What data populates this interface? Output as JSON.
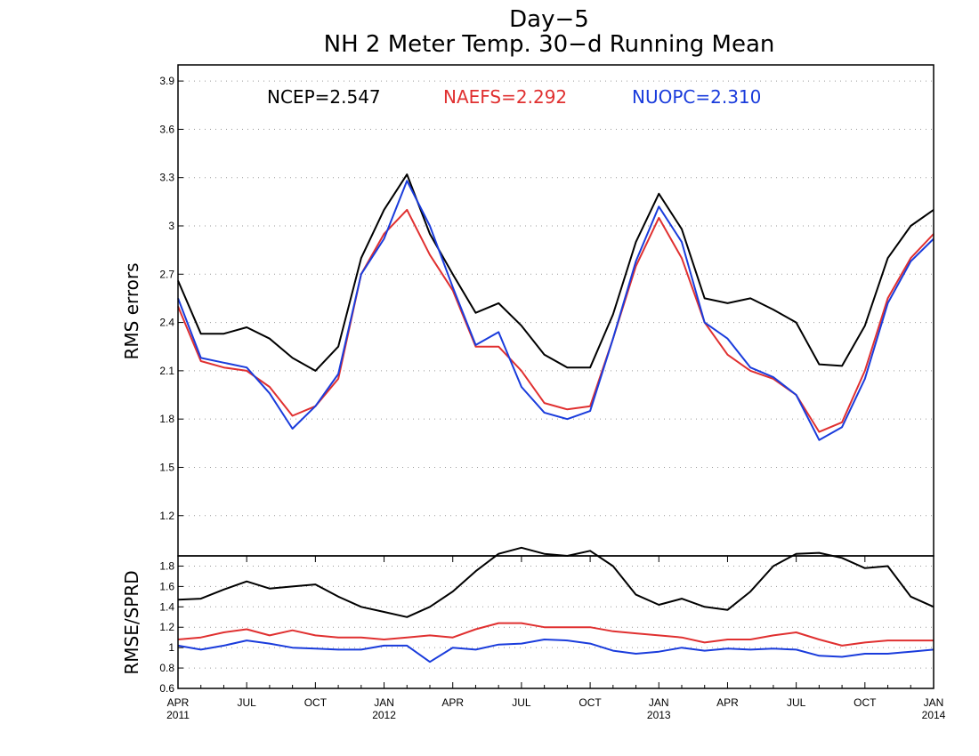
{
  "chart_data": [
    {
      "type": "line",
      "title": "Day−5",
      "subtitle": "NH 2 Meter Temp. 30−d Running Mean",
      "xlabel": "",
      "ylabel": "RMS errors",
      "ylim": [
        0.95,
        4.0
      ],
      "yticks": [
        "3.9",
        "3.6",
        "3.3",
        "3",
        "2.7",
        "2.4",
        "2.1",
        "1.8",
        "1.5",
        "1.2"
      ],
      "ytick_values": [
        3.9,
        3.6,
        3.3,
        3.0,
        2.7,
        2.4,
        2.1,
        1.8,
        1.5,
        1.2
      ],
      "grid": true,
      "annotations": [
        {
          "text": "NCEP=2.547",
          "color": "#000000"
        },
        {
          "text": "NAEFS=2.292",
          "color": "#e03030"
        },
        {
          "text": "NUOPC=2.310",
          "color": "#1a3cdc"
        }
      ],
      "x": [
        "2011-04",
        "2011-05",
        "2011-06",
        "2011-07",
        "2011-08",
        "2011-09",
        "2011-10",
        "2011-11",
        "2011-12",
        "2012-01",
        "2012-02",
        "2012-03",
        "2012-04",
        "2012-05",
        "2012-06",
        "2012-07",
        "2012-08",
        "2012-09",
        "2012-10",
        "2012-11",
        "2012-12",
        "2013-01",
        "2013-02",
        "2013-03",
        "2013-04",
        "2013-05",
        "2013-06",
        "2013-07",
        "2013-08",
        "2013-09",
        "2013-10",
        "2013-11",
        "2013-12",
        "2014-01"
      ],
      "series": [
        {
          "color": "#000000",
          "values": [
            2.66,
            2.33,
            2.33,
            2.37,
            2.3,
            2.18,
            2.1,
            2.25,
            2.8,
            3.1,
            3.32,
            2.95,
            2.7,
            2.46,
            2.52,
            2.38,
            2.2,
            2.12,
            2.12,
            2.45,
            2.9,
            3.2,
            2.98,
            2.55,
            2.52,
            2.55,
            2.48,
            2.4,
            2.14,
            2.13,
            2.38,
            2.8,
            3.0,
            3.1
          ]
        },
        {
          "color": "#e03030",
          "values": [
            2.5,
            2.16,
            2.12,
            2.1,
            2.0,
            1.82,
            1.88,
            2.05,
            2.7,
            2.95,
            3.1,
            2.82,
            2.6,
            2.25,
            2.25,
            2.1,
            1.9,
            1.86,
            1.88,
            2.3,
            2.75,
            3.05,
            2.8,
            2.4,
            2.2,
            2.1,
            2.05,
            1.95,
            1.72,
            1.78,
            2.1,
            2.55,
            2.8,
            2.95
          ]
        },
        {
          "color": "#1a3cdc",
          "values": [
            2.55,
            2.18,
            2.15,
            2.12,
            1.96,
            1.74,
            1.88,
            2.08,
            2.7,
            2.92,
            3.28,
            3.0,
            2.62,
            2.26,
            2.34,
            2.0,
            1.84,
            1.8,
            1.85,
            2.3,
            2.78,
            3.12,
            2.9,
            2.4,
            2.3,
            2.12,
            2.06,
            1.95,
            1.67,
            1.75,
            2.05,
            2.52,
            2.78,
            2.92
          ]
        }
      ]
    },
    {
      "type": "line",
      "title": "",
      "xlabel": "",
      "ylabel": "RMSE/SPRD",
      "ylim": [
        0.6,
        1.9
      ],
      "yticks": [
        "1.8",
        "1.6",
        "1.4",
        "1.2",
        "1",
        "0.8",
        "0.6"
      ],
      "ytick_values": [
        1.8,
        1.6,
        1.4,
        1.2,
        1.0,
        0.8,
        0.6
      ],
      "grid": true,
      "x": [
        "2011-04",
        "2011-05",
        "2011-06",
        "2011-07",
        "2011-08",
        "2011-09",
        "2011-10",
        "2011-11",
        "2011-12",
        "2012-01",
        "2012-02",
        "2012-03",
        "2012-04",
        "2012-05",
        "2012-06",
        "2012-07",
        "2012-08",
        "2012-09",
        "2012-10",
        "2012-11",
        "2012-12",
        "2013-01",
        "2013-02",
        "2013-03",
        "2013-04",
        "2013-05",
        "2013-06",
        "2013-07",
        "2013-08",
        "2013-09",
        "2013-10",
        "2013-11",
        "2013-12",
        "2014-01"
      ],
      "series": [
        {
          "color": "#000000",
          "values": [
            1.47,
            1.48,
            1.57,
            1.65,
            1.58,
            1.6,
            1.62,
            1.5,
            1.4,
            1.35,
            1.3,
            1.4,
            1.55,
            1.75,
            1.92,
            1.98,
            1.92,
            1.9,
            1.95,
            1.8,
            1.52,
            1.42,
            1.48,
            1.4,
            1.37,
            1.55,
            1.8,
            1.92,
            1.93,
            1.88,
            1.78,
            1.8,
            1.5,
            1.4
          ]
        },
        {
          "color": "#e03030",
          "values": [
            1.08,
            1.1,
            1.15,
            1.18,
            1.12,
            1.17,
            1.12,
            1.1,
            1.1,
            1.08,
            1.1,
            1.12,
            1.1,
            1.18,
            1.24,
            1.24,
            1.2,
            1.2,
            1.2,
            1.16,
            1.14,
            1.12,
            1.1,
            1.05,
            1.08,
            1.08,
            1.12,
            1.15,
            1.08,
            1.02,
            1.05,
            1.07,
            1.07,
            1.07
          ]
        },
        {
          "color": "#1a3cdc",
          "values": [
            1.02,
            0.98,
            1.02,
            1.07,
            1.04,
            1.0,
            0.99,
            0.98,
            0.98,
            1.02,
            1.02,
            0.86,
            1.0,
            0.98,
            1.03,
            1.04,
            1.08,
            1.07,
            1.04,
            0.97,
            0.94,
            0.96,
            1.0,
            0.97,
            0.99,
            0.98,
            0.99,
            0.98,
            0.92,
            0.91,
            0.94,
            0.94,
            0.96,
            0.98
          ]
        }
      ]
    }
  ],
  "x_axis": {
    "months": [
      "APR",
      "JUL",
      "OCT",
      "JAN",
      "APR",
      "JUL",
      "OCT",
      "JAN",
      "APR",
      "JUL",
      "OCT",
      "JAN"
    ],
    "years": [
      "2011",
      "2012",
      "2013",
      "2014"
    ],
    "year_tick_index": [
      0,
      3,
      7,
      11
    ]
  }
}
